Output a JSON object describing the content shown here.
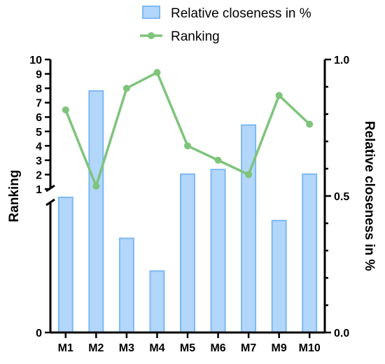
{
  "chart_data": {
    "type": "bar",
    "categories": [
      "M1",
      "M2",
      "M3",
      "M4",
      "M5",
      "M6",
      "M7",
      "M9",
      "M10"
    ],
    "series": [
      {
        "name": "Relative closeness in %",
        "type": "bar",
        "axis": "right",
        "color": "#b3d6fb",
        "edge_color": "#7db9f2",
        "values": [
          0.495,
          0.885,
          0.345,
          0.225,
          0.58,
          0.597,
          0.76,
          0.41,
          0.58
        ]
      },
      {
        "name": "Ranking",
        "type": "line",
        "axis": "left",
        "color": "#7ec47b",
        "values": [
          6.5,
          1.2,
          8.0,
          9.1,
          4.0,
          3.0,
          2.0,
          7.5,
          5.5
        ]
      }
    ],
    "left_axis": {
      "title": "Ranking",
      "ticks": [
        "1",
        "2",
        "3",
        "4",
        "5",
        "6",
        "7",
        "8",
        "9",
        "10",
        "0"
      ],
      "ylim": [
        0,
        10
      ],
      "broken": true
    },
    "right_axis": {
      "title": "Relative closeness in %",
      "ticks": [
        "0.0",
        "0.5",
        "1.0"
      ],
      "ylim": [
        0,
        1
      ]
    },
    "legend_position": "top-right",
    "grid": false
  }
}
